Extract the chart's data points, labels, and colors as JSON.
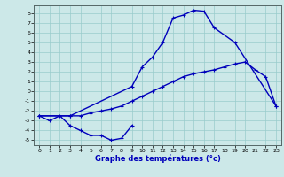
{
  "xlabel": "Graphe des températures (°c)",
  "ylim": [
    -5.5,
    8.8
  ],
  "xlim": [
    -0.5,
    23.5
  ],
  "yticks": [
    -5,
    -4,
    -3,
    -2,
    -1,
    0,
    1,
    2,
    3,
    4,
    5,
    6,
    7,
    8
  ],
  "xticks": [
    0,
    1,
    2,
    3,
    4,
    5,
    6,
    7,
    8,
    9,
    10,
    11,
    12,
    13,
    14,
    15,
    16,
    17,
    18,
    19,
    20,
    21,
    22,
    23
  ],
  "line_color": "#0000bb",
  "bg_color": "#cce8e8",
  "grid_color": "#99cccc",
  "line1_x": [
    0,
    1,
    2,
    3,
    4,
    5,
    6,
    7,
    8,
    9
  ],
  "line1_y": [
    -2.5,
    -3.0,
    -2.5,
    -3.5,
    -4.0,
    -4.5,
    -4.5,
    -5.0,
    -4.8,
    -3.5
  ],
  "line2_x": [
    0,
    3,
    4,
    5,
    6,
    7,
    8,
    9,
    10,
    11,
    12,
    13,
    14,
    15,
    16,
    17,
    18,
    19,
    20,
    21,
    22,
    23
  ],
  "line2_y": [
    -2.5,
    -2.5,
    -2.5,
    -2.2,
    -2.0,
    -1.8,
    -1.5,
    -1.0,
    -0.5,
    0.0,
    0.5,
    1.0,
    1.5,
    1.8,
    2.0,
    2.2,
    2.5,
    2.8,
    3.0,
    2.2,
    1.5,
    -1.5
  ],
  "line3_x": [
    0,
    3,
    9,
    10,
    11,
    12,
    13,
    14,
    15,
    16,
    17,
    19,
    23
  ],
  "line3_y": [
    -2.5,
    -2.5,
    0.5,
    2.5,
    3.5,
    5.0,
    7.5,
    7.8,
    8.3,
    8.2,
    6.5,
    5.0,
    -1.5
  ]
}
